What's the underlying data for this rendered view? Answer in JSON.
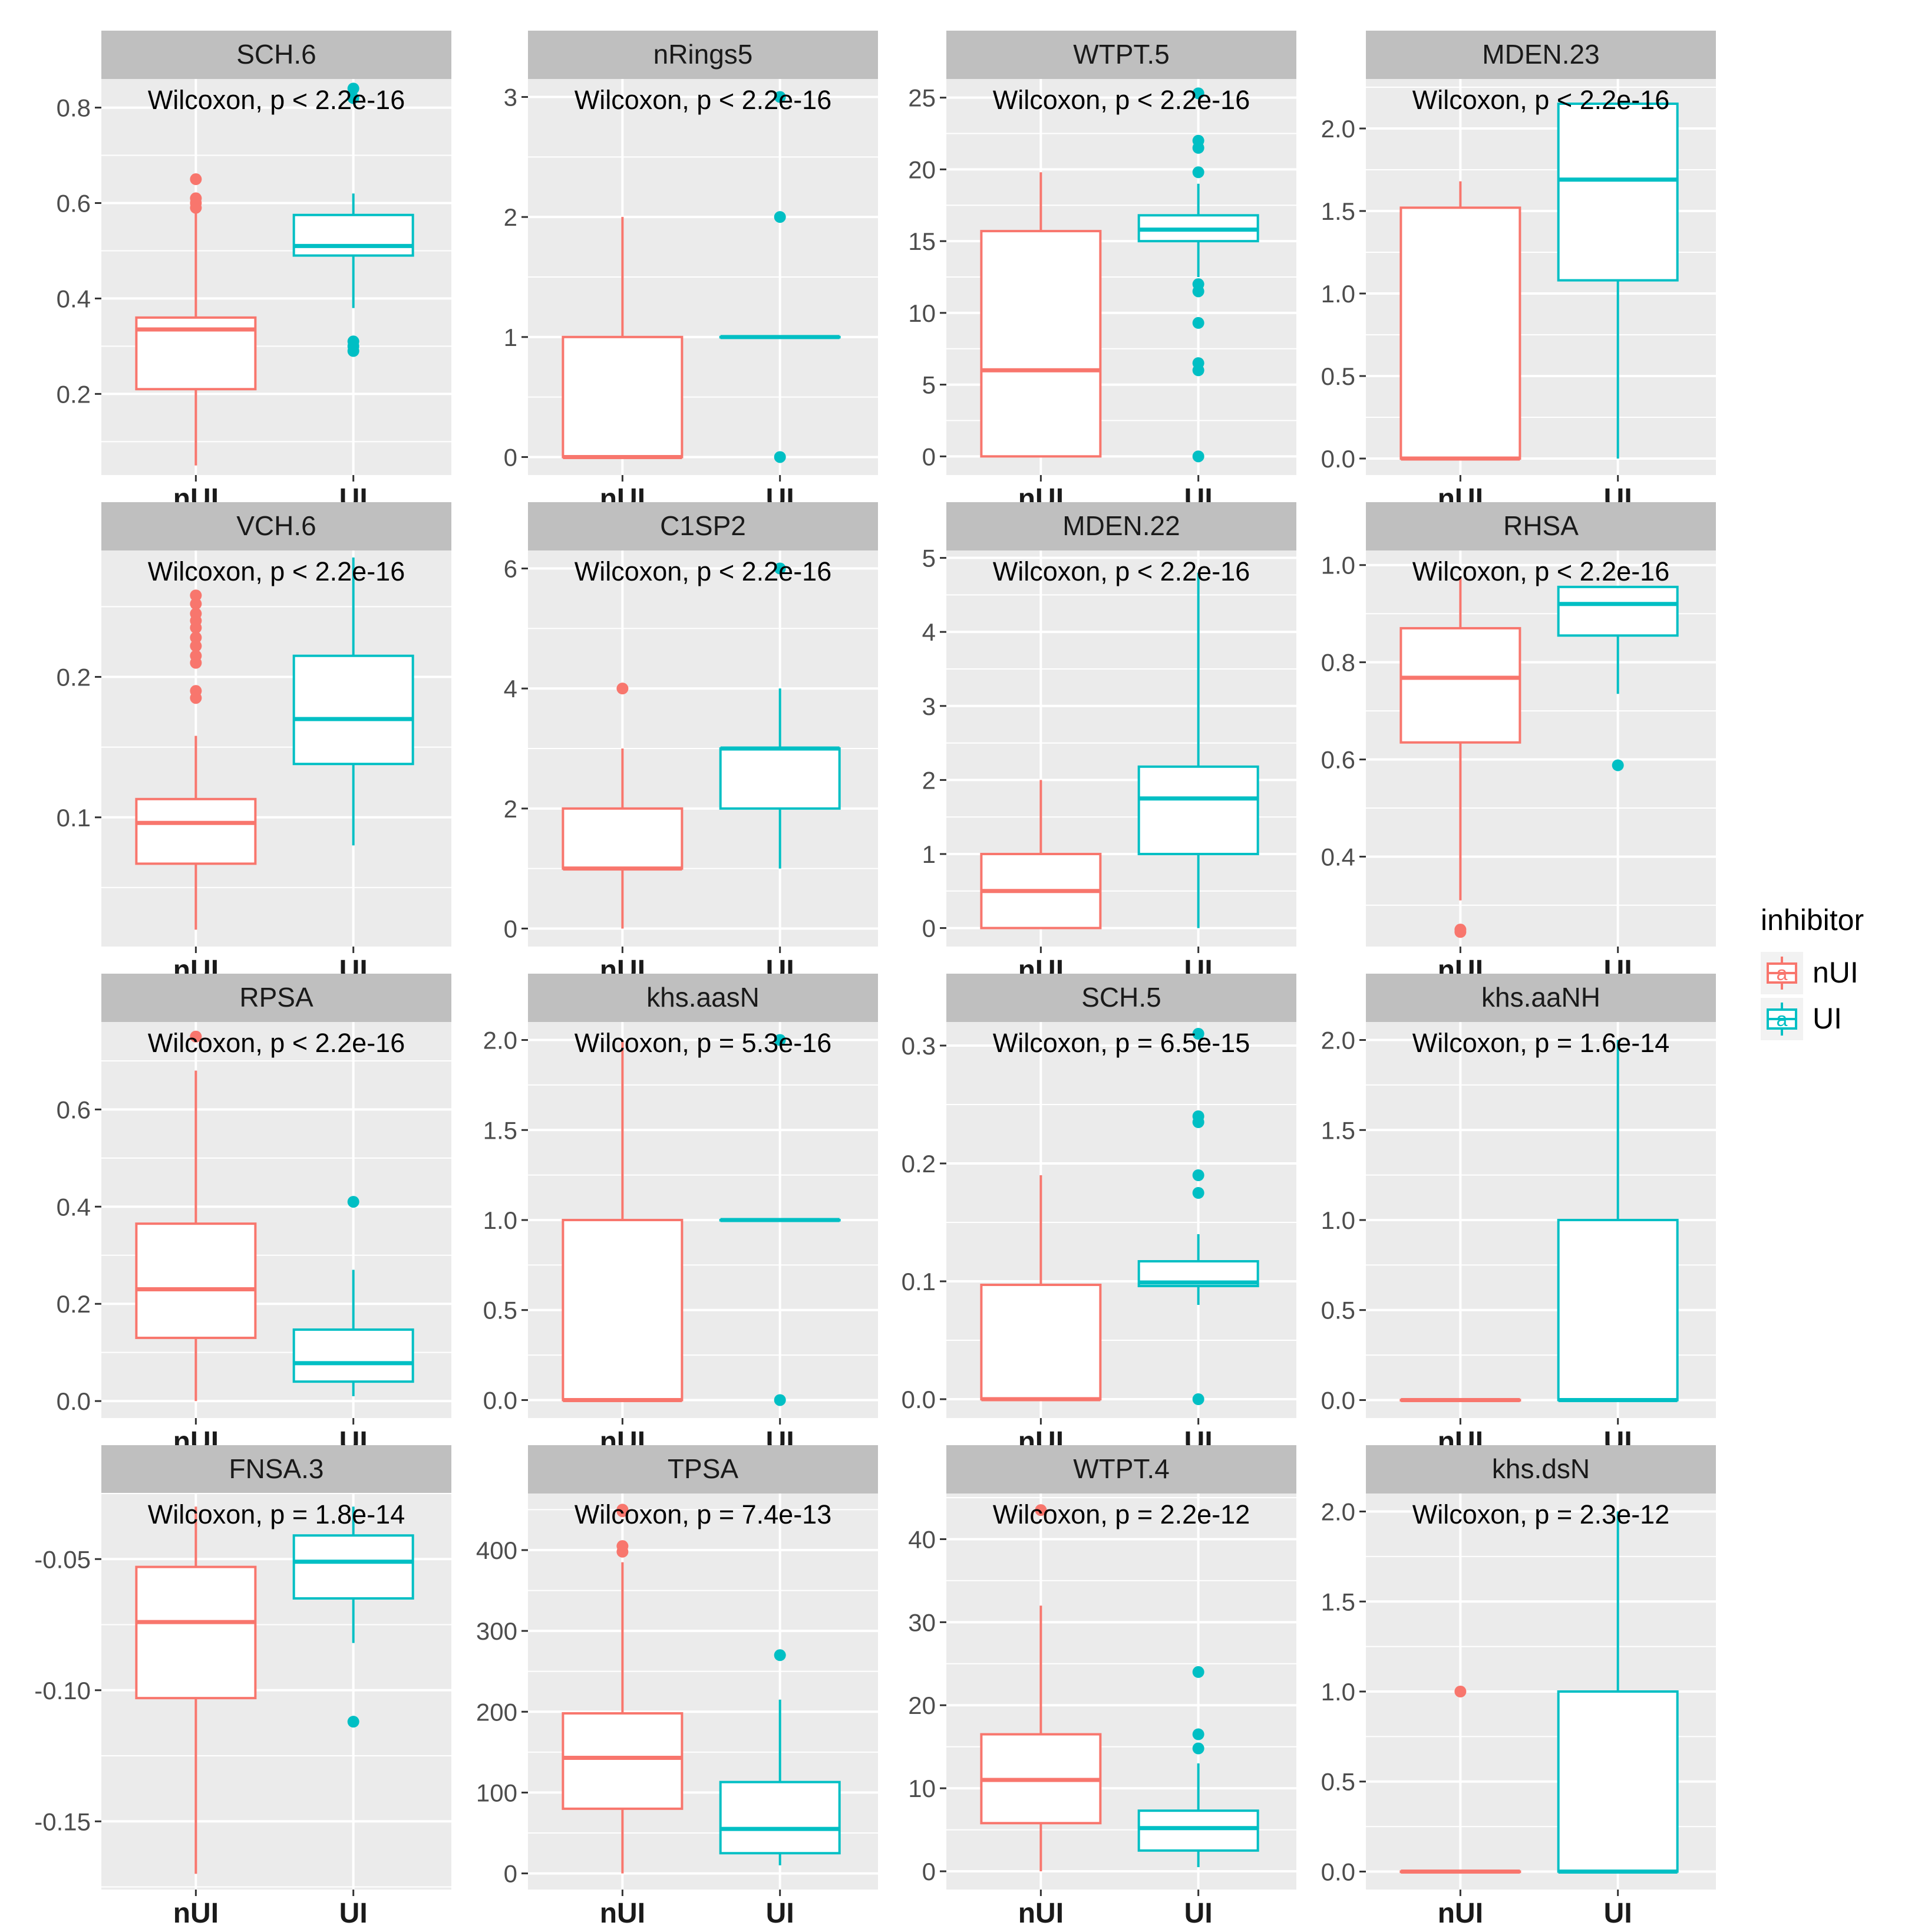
{
  "colors": {
    "nUI": "#F8766D",
    "UI": "#00BFC4",
    "panel_bg": "#EBEBEB",
    "strip_bg": "#BFBFBF",
    "grid": "#FFFFFF"
  },
  "legend": {
    "title": "inhibitor",
    "key_glyph": "a",
    "entries": [
      "nUI",
      "UI"
    ]
  },
  "chart_data": [
    {
      "type": "box",
      "title": "SCH.6",
      "annotation": "Wilcoxon, p < 2.2e-16",
      "categories": [
        "nUI",
        "UI"
      ],
      "ylim": [
        0.03,
        0.86
      ],
      "yticks": [
        0.2,
        0.4,
        0.6,
        0.8
      ],
      "yticklabels": [
        "0.2",
        "0.4",
        "0.6",
        "0.8"
      ],
      "boxes": [
        {
          "group": "nUI",
          "q1": 0.21,
          "median": 0.335,
          "q3": 0.36,
          "whisker_low": 0.05,
          "whisker_high": 0.58,
          "outliers": [
            0.59,
            0.6,
            0.61,
            0.65
          ]
        },
        {
          "group": "UI",
          "q1": 0.49,
          "median": 0.51,
          "q3": 0.575,
          "whisker_low": 0.38,
          "whisker_high": 0.62,
          "outliers": [
            0.29,
            0.3,
            0.31,
            0.82,
            0.84
          ]
        }
      ]
    },
    {
      "type": "box",
      "title": "nRings5",
      "annotation": "Wilcoxon, p < 2.2e-16",
      "categories": [
        "nUI",
        "UI"
      ],
      "ylim": [
        -0.15,
        3.15
      ],
      "yticks": [
        0,
        1,
        2,
        3
      ],
      "yticklabels": [
        "0",
        "1",
        "2",
        "3"
      ],
      "boxes": [
        {
          "group": "nUI",
          "q1": 0,
          "median": 0,
          "q3": 1,
          "whisker_low": 0,
          "whisker_high": 2,
          "outliers": []
        },
        {
          "group": "UI",
          "q1": 1,
          "median": 1,
          "q3": 1,
          "whisker_low": 1,
          "whisker_high": 1,
          "outliers": [
            0,
            2,
            3
          ]
        }
      ]
    },
    {
      "type": "box",
      "title": "WTPT.5",
      "annotation": "Wilcoxon, p < 2.2e-16",
      "categories": [
        "nUI",
        "UI"
      ],
      "ylim": [
        -1.3,
        26.3
      ],
      "yticks": [
        0,
        5,
        10,
        15,
        20,
        25
      ],
      "yticklabels": [
        "0",
        "5",
        "10",
        "15",
        "20",
        "25"
      ],
      "boxes": [
        {
          "group": "nUI",
          "q1": 0,
          "median": 6,
          "q3": 15.7,
          "whisker_low": 0,
          "whisker_high": 19.8,
          "outliers": []
        },
        {
          "group": "UI",
          "q1": 15,
          "median": 15.8,
          "q3": 16.8,
          "whisker_low": 12.5,
          "whisker_high": 19,
          "outliers": [
            0,
            6,
            6.5,
            9.3,
            11.5,
            12,
            19.8,
            21.5,
            22,
            25.3
          ]
        }
      ]
    },
    {
      "type": "box",
      "title": "MDEN.23",
      "annotation": "Wilcoxon, p < 2.2e-16",
      "categories": [
        "nUI",
        "UI"
      ],
      "ylim": [
        -0.1,
        2.3
      ],
      "yticks": [
        0,
        0.5,
        1,
        1.5,
        2
      ],
      "yticklabels": [
        "0.0",
        "0.5",
        "1.0",
        "1.5",
        "2.0"
      ],
      "boxes": [
        {
          "group": "nUI",
          "q1": 0,
          "median": 0,
          "q3": 1.52,
          "whisker_low": 0,
          "whisker_high": 1.68,
          "outliers": []
        },
        {
          "group": "UI",
          "q1": 1.08,
          "median": 1.69,
          "q3": 2.15,
          "whisker_low": 0,
          "whisker_high": 2.15,
          "outliers": []
        }
      ]
    },
    {
      "type": "box",
      "title": "VCH.6",
      "annotation": "Wilcoxon, p < 2.2e-16",
      "categories": [
        "nUI",
        "UI"
      ],
      "ylim": [
        0.008,
        0.29
      ],
      "yticks": [
        0.1,
        0.2
      ],
      "yticklabels": [
        "0.1",
        "0.2"
      ],
      "boxes": [
        {
          "group": "nUI",
          "q1": 0.067,
          "median": 0.096,
          "q3": 0.113,
          "whisker_low": 0.02,
          "whisker_high": 0.158,
          "outliers": [
            0.185,
            0.19,
            0.21,
            0.215,
            0.222,
            0.228,
            0.235,
            0.24,
            0.245,
            0.252,
            0.258
          ]
        },
        {
          "group": "UI",
          "q1": 0.138,
          "median": 0.17,
          "q3": 0.215,
          "whisker_low": 0.08,
          "whisker_high": 0.285,
          "outliers": []
        }
      ]
    },
    {
      "type": "box",
      "title": "C1SP2",
      "annotation": "Wilcoxon, p < 2.2e-16",
      "categories": [
        "nUI",
        "UI"
      ],
      "ylim": [
        -0.3,
        6.3
      ],
      "yticks": [
        0,
        2,
        4,
        6
      ],
      "yticklabels": [
        "0",
        "2",
        "4",
        "6"
      ],
      "boxes": [
        {
          "group": "nUI",
          "q1": 1,
          "median": 1,
          "q3": 2,
          "whisker_low": 0,
          "whisker_high": 3,
          "outliers": [
            4
          ]
        },
        {
          "group": "UI",
          "q1": 2,
          "median": 3,
          "q3": 3,
          "whisker_low": 1,
          "whisker_high": 4,
          "outliers": [
            6
          ]
        }
      ]
    },
    {
      "type": "box",
      "title": "MDEN.22",
      "annotation": "Wilcoxon, p < 2.2e-16",
      "categories": [
        "nUI",
        "UI"
      ],
      "ylim": [
        -0.25,
        5.1
      ],
      "yticks": [
        0,
        1,
        2,
        3,
        4,
        5
      ],
      "yticklabels": [
        "0",
        "1",
        "2",
        "3",
        "4",
        "5"
      ],
      "boxes": [
        {
          "group": "nUI",
          "q1": 0,
          "median": 0.5,
          "q3": 1,
          "whisker_low": 0,
          "whisker_high": 2,
          "outliers": []
        },
        {
          "group": "UI",
          "q1": 1,
          "median": 1.75,
          "q3": 2.18,
          "whisker_low": 0,
          "whisker_high": 4.8,
          "outliers": []
        }
      ]
    },
    {
      "type": "box",
      "title": "RHSA",
      "annotation": "Wilcoxon, p < 2.2e-16",
      "categories": [
        "nUI",
        "UI"
      ],
      "ylim": [
        0.215,
        1.03
      ],
      "yticks": [
        0.4,
        0.6,
        0.8,
        1.0
      ],
      "yticklabels": [
        "0.4",
        "0.6",
        "0.8",
        "1.0"
      ],
      "boxes": [
        {
          "group": "nUI",
          "q1": 0.635,
          "median": 0.768,
          "q3": 0.87,
          "whisker_low": 0.31,
          "whisker_high": 0.975,
          "outliers": [
            0.245,
            0.25
          ]
        },
        {
          "group": "UI",
          "q1": 0.855,
          "median": 0.92,
          "q3": 0.955,
          "whisker_low": 0.735,
          "whisker_high": 0.955,
          "outliers": [
            0.588
          ]
        }
      ]
    },
    {
      "type": "box",
      "title": "RPSA",
      "annotation": "Wilcoxon, p < 2.2e-16",
      "categories": [
        "nUI",
        "UI"
      ],
      "ylim": [
        -0.035,
        0.78
      ],
      "yticks": [
        0,
        0.2,
        0.4,
        0.6
      ],
      "yticklabels": [
        "0.0",
        "0.2",
        "0.4",
        "0.6"
      ],
      "boxes": [
        {
          "group": "nUI",
          "q1": 0.13,
          "median": 0.23,
          "q3": 0.365,
          "whisker_low": 0,
          "whisker_high": 0.68,
          "outliers": [
            0.75
          ]
        },
        {
          "group": "UI",
          "q1": 0.04,
          "median": 0.078,
          "q3": 0.147,
          "whisker_low": 0.01,
          "whisker_high": 0.27,
          "outliers": [
            0.41
          ]
        }
      ]
    },
    {
      "type": "box",
      "title": "khs.aasN",
      "annotation": "Wilcoxon, p = 5.3e-16",
      "categories": [
        "nUI",
        "UI"
      ],
      "ylim": [
        -0.1,
        2.1
      ],
      "yticks": [
        0,
        0.5,
        1,
        1.5,
        2
      ],
      "yticklabels": [
        "0.0",
        "0.5",
        "1.0",
        "1.5",
        "2.0"
      ],
      "boxes": [
        {
          "group": "nUI",
          "q1": 0,
          "median": 0,
          "q3": 1,
          "whisker_low": 0,
          "whisker_high": 2,
          "outliers": []
        },
        {
          "group": "UI",
          "q1": 1,
          "median": 1,
          "q3": 1,
          "whisker_low": 1,
          "whisker_high": 1,
          "outliers": [
            0,
            2
          ]
        }
      ]
    },
    {
      "type": "box",
      "title": "SCH.5",
      "annotation": "Wilcoxon, p = 6.5e-15",
      "categories": [
        "nUI",
        "UI"
      ],
      "ylim": [
        -0.016,
        0.32
      ],
      "yticks": [
        0,
        0.1,
        0.2,
        0.3
      ],
      "yticklabels": [
        "0.0",
        "0.1",
        "0.2",
        "0.3"
      ],
      "boxes": [
        {
          "group": "nUI",
          "q1": 0,
          "median": 0,
          "q3": 0.097,
          "whisker_low": 0,
          "whisker_high": 0.19,
          "outliers": []
        },
        {
          "group": "UI",
          "q1": 0.096,
          "median": 0.099,
          "q3": 0.117,
          "whisker_low": 0.08,
          "whisker_high": 0.14,
          "outliers": [
            0,
            0.175,
            0.19,
            0.235,
            0.24,
            0.31
          ]
        }
      ]
    },
    {
      "type": "box",
      "title": "khs.aaNH",
      "annotation": "Wilcoxon, p = 1.6e-14",
      "categories": [
        "nUI",
        "UI"
      ],
      "ylim": [
        -0.1,
        2.1
      ],
      "yticks": [
        0,
        0.5,
        1,
        1.5,
        2
      ],
      "yticklabels": [
        "0.0",
        "0.5",
        "1.0",
        "1.5",
        "2.0"
      ],
      "boxes": [
        {
          "group": "nUI",
          "q1": 0,
          "median": 0,
          "q3": 0,
          "whisker_low": 0,
          "whisker_high": 0,
          "outliers": []
        },
        {
          "group": "UI",
          "q1": 0,
          "median": 0,
          "q3": 1,
          "whisker_low": 0,
          "whisker_high": 2,
          "outliers": []
        }
      ]
    },
    {
      "type": "box",
      "title": "FNSA.3",
      "annotation": "Wilcoxon, p = 1.8e-14",
      "categories": [
        "nUI",
        "UI"
      ],
      "ylim": [
        -0.176,
        -0.025
      ],
      "yticks": [
        -0.15,
        -0.1,
        -0.05
      ],
      "yticklabels": [
        "-0.15",
        "-0.10",
        "-0.05"
      ],
      "boxes": [
        {
          "group": "nUI",
          "q1": -0.103,
          "median": -0.074,
          "q3": -0.053,
          "whisker_low": -0.17,
          "whisker_high": -0.03,
          "outliers": []
        },
        {
          "group": "UI",
          "q1": -0.065,
          "median": -0.051,
          "q3": -0.041,
          "whisker_low": -0.082,
          "whisker_high": -0.03,
          "outliers": [
            -0.112
          ]
        }
      ]
    },
    {
      "type": "box",
      "title": "TPSA",
      "annotation": "Wilcoxon, p = 7.4e-13",
      "categories": [
        "nUI",
        "UI"
      ],
      "ylim": [
        -20,
        470
      ],
      "yticks": [
        0,
        100,
        200,
        300,
        400
      ],
      "yticklabels": [
        "0",
        "100",
        "200",
        "300",
        "400"
      ],
      "boxes": [
        {
          "group": "nUI",
          "q1": 80,
          "median": 143,
          "q3": 198,
          "whisker_low": 0,
          "whisker_high": 385,
          "outliers": [
            398,
            405,
            448,
            450
          ]
        },
        {
          "group": "UI",
          "q1": 25,
          "median": 55,
          "q3": 113,
          "whisker_low": 10,
          "whisker_high": 215,
          "outliers": [
            270
          ]
        }
      ]
    },
    {
      "type": "box",
      "title": "WTPT.4",
      "annotation": "Wilcoxon, p = 2.2e-12",
      "categories": [
        "nUI",
        "UI"
      ],
      "ylim": [
        -2.2,
        45.5
      ],
      "yticks": [
        0,
        10,
        20,
        30,
        40
      ],
      "yticklabels": [
        "0",
        "10",
        "20",
        "30",
        "40"
      ],
      "boxes": [
        {
          "group": "nUI",
          "q1": 5.8,
          "median": 11,
          "q3": 16.5,
          "whisker_low": 0,
          "whisker_high": 32,
          "outliers": [
            43.5
          ]
        },
        {
          "group": "UI",
          "q1": 2.5,
          "median": 5.2,
          "q3": 7.3,
          "whisker_low": 0.5,
          "whisker_high": 13,
          "outliers": [
            14.8,
            16.5,
            24
          ]
        }
      ]
    },
    {
      "type": "box",
      "title": "khs.dsN",
      "annotation": "Wilcoxon, p = 2.3e-12",
      "categories": [
        "nUI",
        "UI"
      ],
      "ylim": [
        -0.1,
        2.1
      ],
      "yticks": [
        0,
        0.5,
        1,
        1.5,
        2
      ],
      "yticklabels": [
        "0.0",
        "0.5",
        "1.0",
        "1.5",
        "2.0"
      ],
      "boxes": [
        {
          "group": "nUI",
          "q1": 0,
          "median": 0,
          "q3": 0,
          "whisker_low": 0,
          "whisker_high": 0,
          "outliers": [
            1
          ]
        },
        {
          "group": "UI",
          "q1": 0,
          "median": 0,
          "q3": 1,
          "whisker_low": 0,
          "whisker_high": 2,
          "outliers": []
        }
      ]
    }
  ]
}
